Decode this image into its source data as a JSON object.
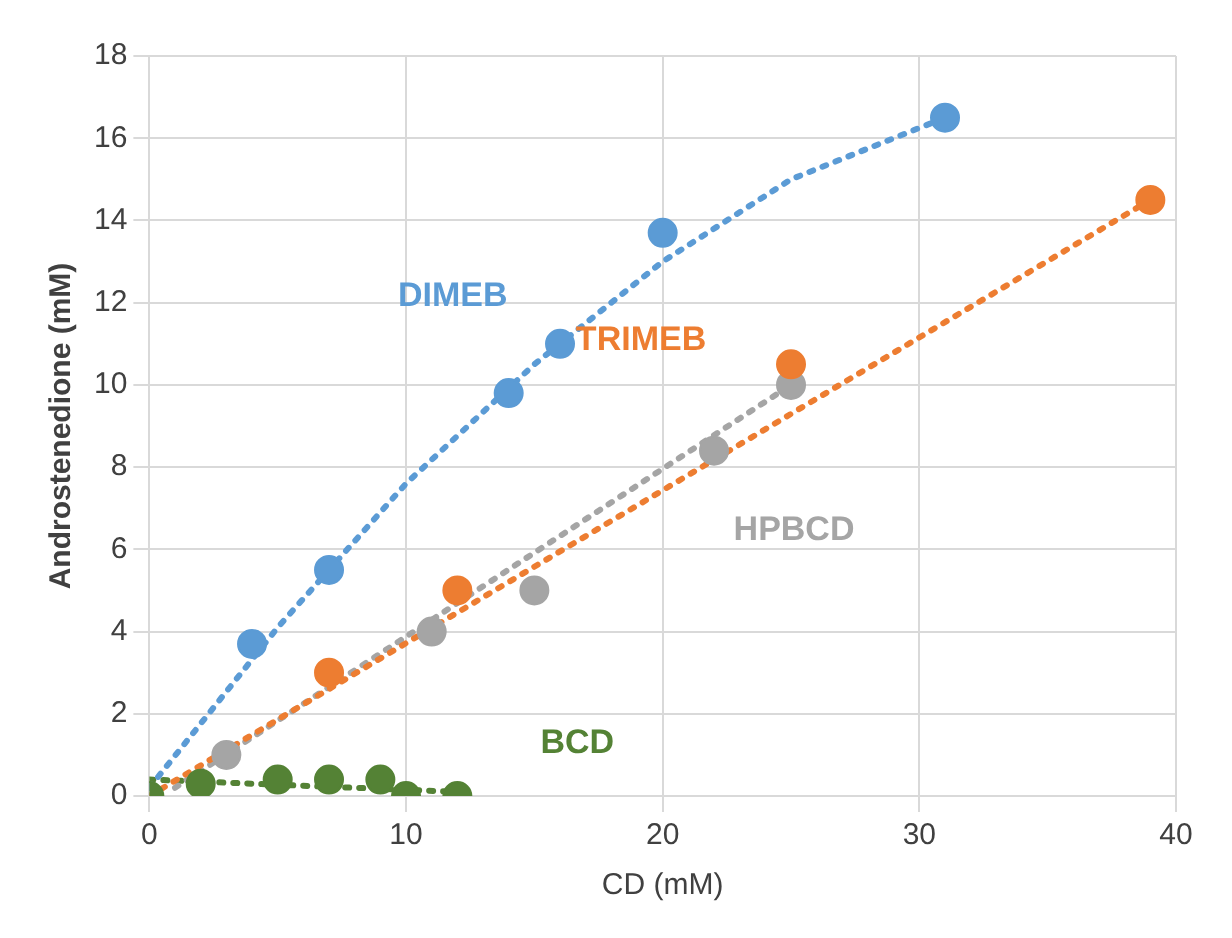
{
  "chart_data": {
    "type": "scatter",
    "xlabel": "CD (mM)",
    "ylabel": "Androstenedione (mM)",
    "xlim": [
      0,
      40
    ],
    "xticks": [
      0,
      10,
      20,
      30,
      40
    ],
    "ylim": [
      0,
      18
    ],
    "yticks": [
      0,
      2,
      4,
      6,
      8,
      10,
      12,
      14,
      16,
      18
    ],
    "grid": true,
    "legend": false,
    "marker": "circle",
    "series": [
      {
        "name": "DIMEB",
        "color": "#5b9bd5",
        "x": [
          4,
          7,
          14,
          16,
          20,
          31
        ],
        "values": [
          3.7,
          5.5,
          9.8,
          11,
          13.7,
          16.5
        ]
      },
      {
        "name": "TRIMEB",
        "color": "#ed7d31",
        "x": [
          7,
          12,
          25,
          39
        ],
        "values": [
          3,
          5,
          10.5,
          14.5
        ]
      },
      {
        "name": "HPBCD",
        "color": "#a5a5a5",
        "x": [
          3,
          11,
          15,
          22,
          25
        ],
        "values": [
          1,
          4,
          5,
          8.4,
          10
        ]
      },
      {
        "name": "BCD",
        "color": "#548235",
        "x": [
          0,
          2,
          5,
          7,
          9,
          10,
          12
        ],
        "values": [
          0,
          0.3,
          0.4,
          0.4,
          0.4,
          0,
          0
        ]
      },
      {
        "type": "line",
        "line_style": "dotted",
        "marker": "none",
        "color": "#5b9bd5",
        "x": [
          0,
          5,
          10,
          15,
          20,
          25,
          31
        ],
        "values": [
          0.2,
          4.1,
          7.6,
          10.5,
          13,
          15,
          16.5
        ]
      },
      {
        "type": "line",
        "line_style": "dotted",
        "marker": "none",
        "color": "#ed7d31",
        "x": [
          0,
          39
        ],
        "values": [
          0,
          14.5
        ]
      },
      {
        "type": "line",
        "line_style": "dotted",
        "marker": "none",
        "color": "#a5a5a5",
        "x": [
          1,
          25
        ],
        "values": [
          0.2,
          10
        ]
      },
      {
        "type": "line",
        "line_style": "dotted",
        "marker": "none",
        "color": "#548235",
        "x": [
          0,
          12
        ],
        "values": [
          0.4,
          0.1
        ]
      }
    ]
  }
}
